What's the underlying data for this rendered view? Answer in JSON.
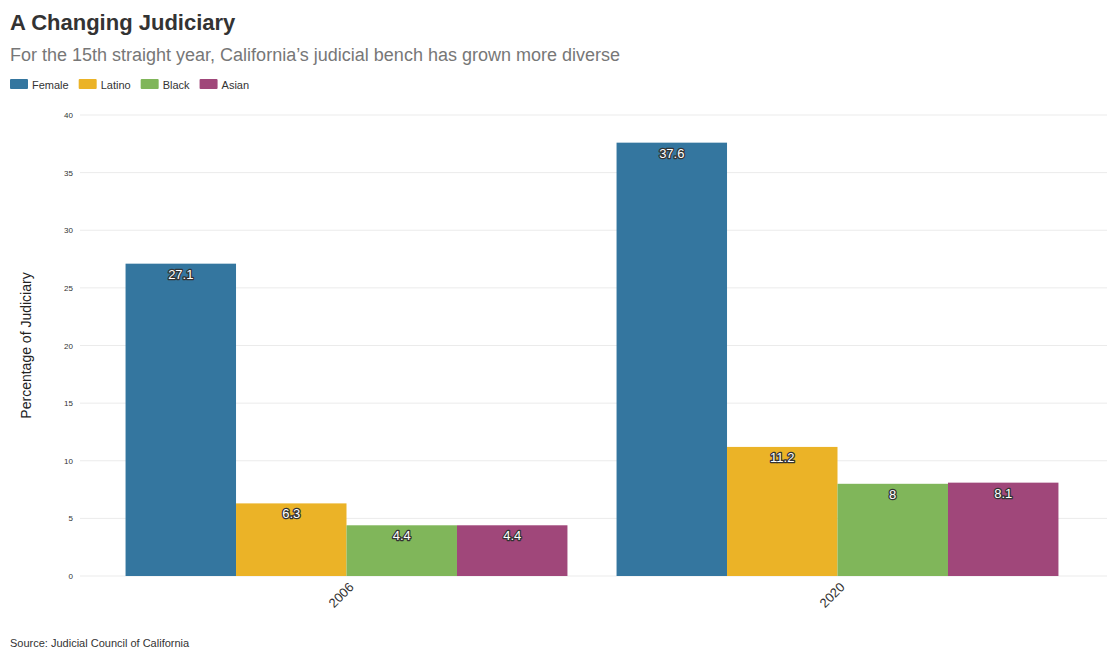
{
  "chart_data": {
    "type": "bar",
    "title": "A Changing Judiciary",
    "subtitle": "For the 15th straight year, California’s judicial bench has grown more diverse",
    "y_label": "Percentage of Judiciary",
    "source": "Source: Judicial Council of California",
    "categories": [
      "2006",
      "2020"
    ],
    "series": [
      {
        "name": "Female",
        "color": "#34769f",
        "values": [
          27.1,
          37.6
        ]
      },
      {
        "name": "Latino",
        "color": "#ebb327",
        "values": [
          6.3,
          11.2
        ]
      },
      {
        "name": "Black",
        "color": "#80b65a",
        "values": [
          4.4,
          8
        ]
      },
      {
        "name": "Asian",
        "color": "#a0477a",
        "values": [
          4.4,
          8.1
        ]
      }
    ],
    "ylim": [
      0,
      40
    ],
    "yticks": [
      0,
      5,
      10,
      15,
      20,
      25,
      30,
      35,
      40
    ],
    "grid": true,
    "legend": "top-left",
    "data_labels": true
  }
}
